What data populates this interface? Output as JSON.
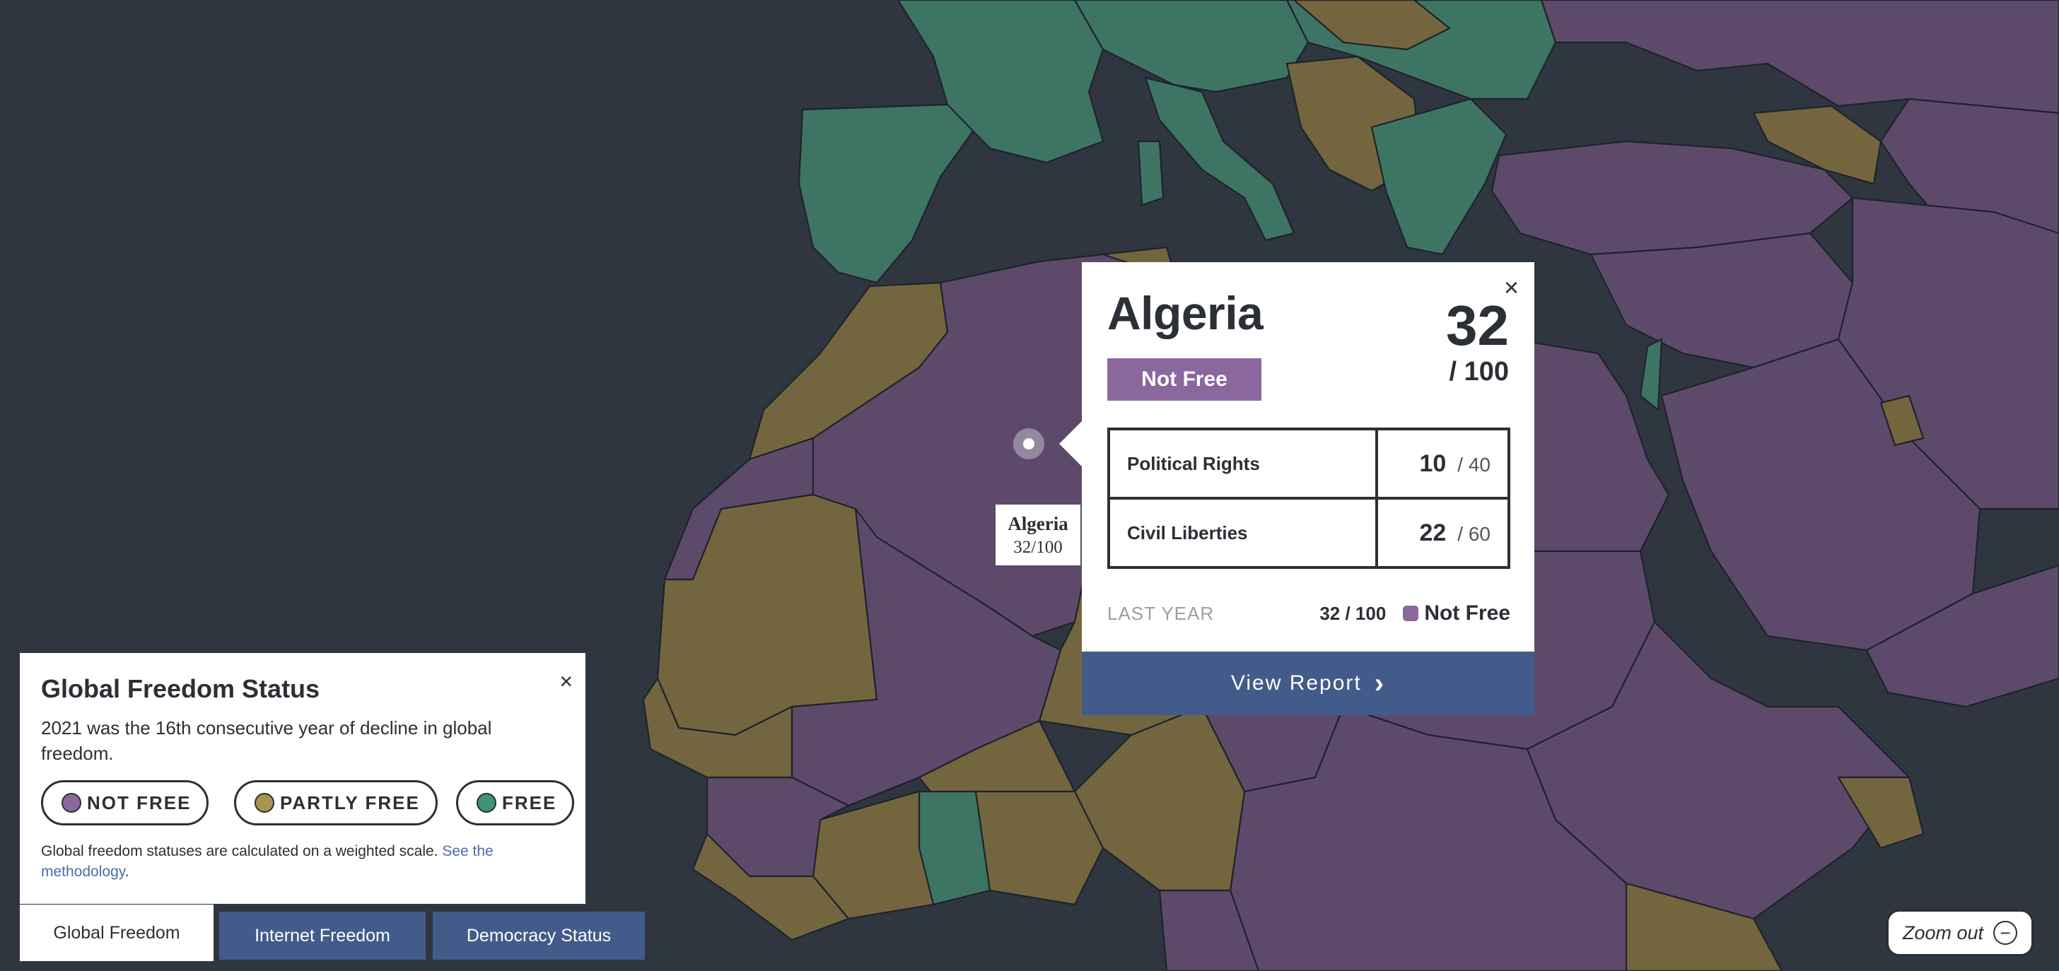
{
  "map": {
    "colors": {
      "not_free": "#5d4a6b",
      "partly_free": "#73663f",
      "free": "#3e7463",
      "water": "#2f3640",
      "border": "#1e232b"
    },
    "hover_label": {
      "name": "Algeria",
      "score": "32/100"
    }
  },
  "popup": {
    "close_icon": "×",
    "country": "Algeria",
    "status": "Not Free",
    "score": "32",
    "score_max": "/ 100",
    "rows": [
      {
        "label": "Political Rights",
        "score": "10",
        "max": "/ 40"
      },
      {
        "label": "Civil Liberties",
        "score": "22",
        "max": "/ 60"
      }
    ],
    "last_year": {
      "label": "LAST YEAR",
      "score": "32 / 100",
      "status": "Not Free"
    },
    "view_report": "View Report",
    "chevron_icon": "›"
  },
  "legend": {
    "close_icon": "×",
    "title": "Global Freedom Status",
    "description": "2021 was the 16th consecutive year of decline in global freedom.",
    "items": [
      {
        "label": "NOT FREE",
        "color": "#8b679e"
      },
      {
        "label": "PARTLY FREE",
        "color": "#a8944e"
      },
      {
        "label": "FREE",
        "color": "#3e9474"
      }
    ],
    "note": "Global freedom statuses are calculated on a weighted scale.",
    "note_link": "See the methodology",
    "note_end": "."
  },
  "tabs": [
    {
      "label": "Global Freedom",
      "active": true
    },
    {
      "label": "Internet Freedom",
      "active": false
    },
    {
      "label": "Democracy Status",
      "active": false
    }
  ],
  "zoom_out": {
    "label": "Zoom out",
    "icon": "−"
  }
}
